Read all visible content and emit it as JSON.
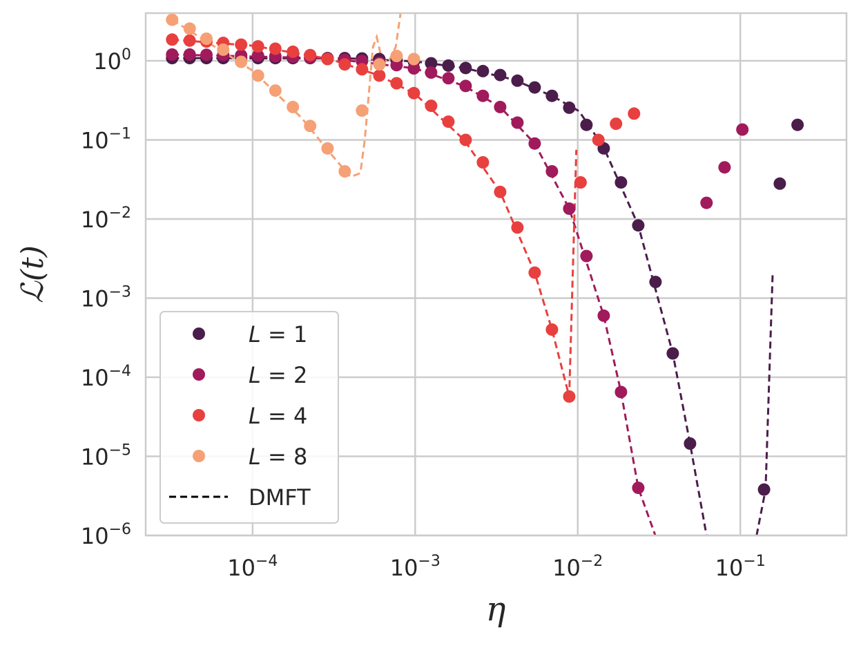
{
  "chart_data": {
    "type": "scatter",
    "xscale": "log",
    "yscale": "log",
    "xlim": [
      2.2e-05,
      0.45
    ],
    "ylim": [
      1e-06,
      4.0
    ],
    "xlabel": "η",
    "ylabel": "ℒ(t)",
    "x_ticks": [
      {
        "value": 0.0001,
        "base": "10",
        "exp": "−4"
      },
      {
        "value": 0.001,
        "base": "10",
        "exp": "−3"
      },
      {
        "value": 0.01,
        "base": "10",
        "exp": "−2"
      },
      {
        "value": 0.1,
        "base": "10",
        "exp": "−1"
      }
    ],
    "y_ticks": [
      {
        "value": 1,
        "base": "10",
        "exp": "0"
      },
      {
        "value": 0.1,
        "base": "10",
        "exp": "−1"
      },
      {
        "value": 0.01,
        "base": "10",
        "exp": "−2"
      },
      {
        "value": 0.001,
        "base": "10",
        "exp": "−3"
      },
      {
        "value": 0.0001,
        "base": "10",
        "exp": "−4"
      },
      {
        "value": 1e-05,
        "base": "10",
        "exp": "−5"
      },
      {
        "value": 1e-06,
        "base": "10",
        "exp": "−6"
      }
    ],
    "grid": true,
    "legend_position": "lower-left",
    "series": [
      {
        "name": "L = 1",
        "legend_var": "L",
        "legend_val": "1",
        "color": "#4b1d4b",
        "points": [
          [
            3.2e-05,
            1.08
          ],
          [
            4.1e-05,
            1.08
          ],
          [
            5.2e-05,
            1.08
          ],
          [
            6.6e-05,
            1.08
          ],
          [
            8.5e-05,
            1.08
          ],
          [
            0.000108,
            1.08
          ],
          [
            0.000138,
            1.08
          ],
          [
            0.000177,
            1.08
          ],
          [
            0.000226,
            1.08
          ],
          [
            0.000289,
            1.08
          ],
          [
            0.000369,
            1.08
          ],
          [
            0.000471,
            1.07
          ],
          [
            0.000602,
            1.05
          ],
          [
            0.000769,
            1.02
          ],
          [
            0.000982,
            0.98
          ],
          [
            0.001254,
            0.93
          ],
          [
            0.001601,
            0.87
          ],
          [
            0.002044,
            0.81
          ],
          [
            0.00261,
            0.74
          ],
          [
            0.003333,
            0.66
          ],
          [
            0.004256,
            0.56
          ],
          [
            0.005435,
            0.46
          ],
          [
            0.00694,
            0.36
          ],
          [
            0.00886,
            0.255
          ],
          [
            0.01132,
            0.155
          ],
          [
            0.01445,
            0.078
          ],
          [
            0.01845,
            0.029
          ],
          [
            0.02356,
            0.0083
          ],
          [
            0.03008,
            0.0016
          ],
          [
            0.03841,
            0.0002
          ],
          [
            0.04905,
            1.45e-05
          ],
          [
            0.14,
            3.8e-06
          ],
          [
            0.175,
            0.028
          ],
          [
            0.225,
            0.155
          ]
        ],
        "dmft": [
          [
            3.2e-05,
            1.08
          ],
          [
            0.0004,
            1.07
          ],
          [
            0.001,
            0.98
          ],
          [
            0.002,
            0.81
          ],
          [
            0.004,
            0.58
          ],
          [
            0.00694,
            0.36
          ],
          [
            0.0102,
            0.23
          ],
          [
            0.01445,
            0.08
          ],
          [
            0.02356,
            0.0083
          ],
          [
            0.03841,
            0.0002
          ],
          [
            0.04905,
            1.45e-05
          ],
          [
            0.062,
            1e-06
          ]
        ],
        "dmft_spike": [
          [
            0.126,
            1e-06
          ],
          [
            0.143,
            3.8e-06
          ],
          [
            0.158,
            0.002
          ]
        ]
      },
      {
        "name": "L = 2",
        "legend_var": "L",
        "legend_val": "2",
        "color": "#a11a5b",
        "points": [
          [
            3.2e-05,
            1.2
          ],
          [
            4.1e-05,
            1.2
          ],
          [
            5.2e-05,
            1.19
          ],
          [
            6.6e-05,
            1.18
          ],
          [
            8.5e-05,
            1.17
          ],
          [
            0.000108,
            1.16
          ],
          [
            0.000138,
            1.14
          ],
          [
            0.000177,
            1.12
          ],
          [
            0.000226,
            1.1
          ],
          [
            0.000289,
            1.07
          ],
          [
            0.000369,
            1.03
          ],
          [
            0.000471,
            0.99
          ],
          [
            0.000602,
            0.94
          ],
          [
            0.000769,
            0.88
          ],
          [
            0.000982,
            0.8
          ],
          [
            0.001254,
            0.71
          ],
          [
            0.001601,
            0.6
          ],
          [
            0.002044,
            0.48
          ],
          [
            0.00261,
            0.36
          ],
          [
            0.003333,
            0.26
          ],
          [
            0.004256,
            0.165
          ],
          [
            0.005435,
            0.09
          ],
          [
            0.00694,
            0.04
          ],
          [
            0.00886,
            0.0135
          ],
          [
            0.01132,
            0.0034
          ],
          [
            0.01445,
            0.0006
          ],
          [
            0.01845,
            6.5e-05
          ],
          [
            0.02356,
            4e-06
          ],
          [
            0.062,
            0.016
          ],
          [
            0.08,
            0.045
          ],
          [
            0.103,
            0.135
          ]
        ],
        "dmft": [
          [
            3.2e-05,
            1.2
          ],
          [
            0.0003,
            1.07
          ],
          [
            0.001,
            0.8
          ],
          [
            0.002,
            0.48
          ],
          [
            0.003333,
            0.26
          ],
          [
            0.005435,
            0.09
          ],
          [
            0.00886,
            0.0135
          ],
          [
            0.01445,
            0.0006
          ],
          [
            0.01845,
            6.5e-05
          ],
          [
            0.02356,
            4e-06
          ],
          [
            0.03,
            1e-06
          ]
        ]
      },
      {
        "name": "L = 4",
        "legend_var": "L",
        "legend_val": "4",
        "color": "#e8403e",
        "points": [
          [
            3.2e-05,
            1.85
          ],
          [
            4.1e-05,
            1.8
          ],
          [
            5.2e-05,
            1.75
          ],
          [
            6.6e-05,
            1.68
          ],
          [
            8.5e-05,
            1.6
          ],
          [
            0.000108,
            1.52
          ],
          [
            0.000138,
            1.42
          ],
          [
            0.000177,
            1.3
          ],
          [
            0.000226,
            1.18
          ],
          [
            0.000289,
            1.05
          ],
          [
            0.000369,
            0.9
          ],
          [
            0.000471,
            0.78
          ],
          [
            0.000602,
            0.65
          ],
          [
            0.000769,
            0.52
          ],
          [
            0.000982,
            0.39
          ],
          [
            0.001254,
            0.27
          ],
          [
            0.001601,
            0.17
          ],
          [
            0.002044,
            0.1
          ],
          [
            0.00261,
            0.052
          ],
          [
            0.003333,
            0.022
          ],
          [
            0.004256,
            0.0078
          ],
          [
            0.005435,
            0.0021
          ],
          [
            0.00694,
            0.0004
          ],
          [
            0.00886,
            5.7e-05
          ],
          [
            0.01042,
            0.029
          ],
          [
            0.0134,
            0.1
          ],
          [
            0.0172,
            0.16
          ],
          [
            0.0222,
            0.215
          ]
        ],
        "dmft": [
          [
            3.2e-05,
            1.85
          ],
          [
            0.0001,
            1.55
          ],
          [
            0.0003,
            1.05
          ],
          [
            0.000602,
            0.65
          ],
          [
            0.001,
            0.38
          ],
          [
            0.002,
            0.1
          ],
          [
            0.003333,
            0.022
          ],
          [
            0.005435,
            0.0021
          ],
          [
            0.00694,
            0.0004
          ],
          [
            0.00886,
            5.7e-05
          ],
          [
            0.0098,
            0.075
          ]
        ]
      },
      {
        "name": "L = 8",
        "legend_var": "L",
        "legend_val": "8",
        "color": "#f6a075",
        "points": [
          [
            3.2e-05,
            3.3
          ],
          [
            4.1e-05,
            2.55
          ],
          [
            5.2e-05,
            1.9
          ],
          [
            6.6e-05,
            1.38
          ],
          [
            8.5e-05,
            0.97
          ],
          [
            0.000108,
            0.65
          ],
          [
            0.000138,
            0.42
          ],
          [
            0.000177,
            0.26
          ],
          [
            0.000226,
            0.15
          ],
          [
            0.000289,
            0.078
          ],
          [
            0.000369,
            0.04
          ],
          [
            0.000471,
            0.235
          ],
          [
            0.000602,
            0.9
          ],
          [
            0.000769,
            1.15
          ],
          [
            0.000982,
            1.05
          ]
        ],
        "dmft": [
          [
            3.2e-05,
            3.3
          ],
          [
            0.0001,
            0.75
          ],
          [
            0.0002,
            0.19
          ],
          [
            0.0003,
            0.068
          ],
          [
            0.0004,
            0.034
          ],
          [
            0.00046,
            0.038
          ],
          [
            0.00049,
            0.1
          ],
          [
            0.00055,
            1.5
          ],
          [
            0.00058,
            2.0
          ],
          [
            0.00062,
            1.1
          ],
          [
            0.000682,
            0.95
          ],
          [
            0.00076,
            1.5
          ],
          [
            0.00082,
            4.5
          ]
        ]
      }
    ],
    "dmft_legend_label": "DMFT"
  }
}
